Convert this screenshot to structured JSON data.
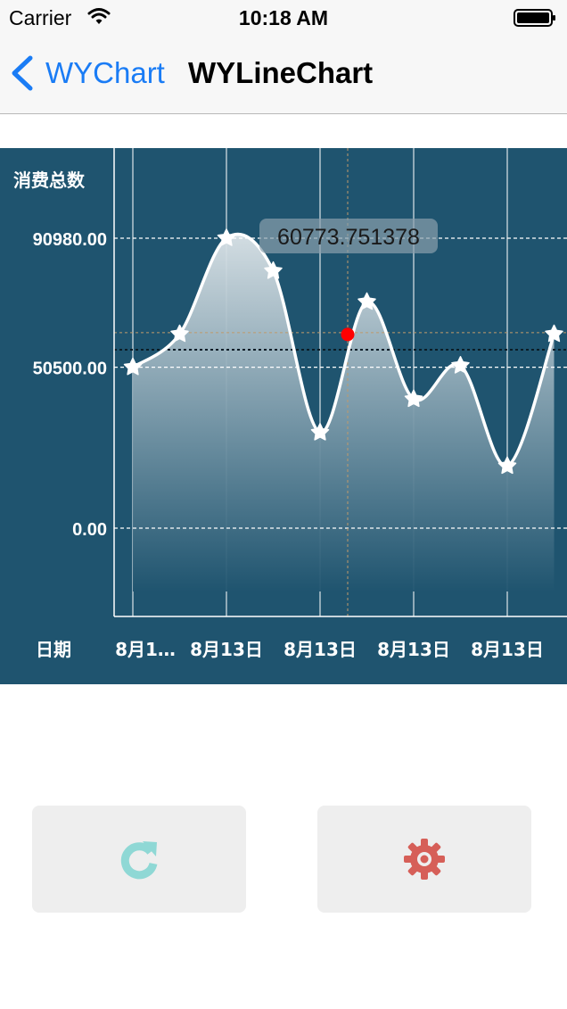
{
  "status_bar": {
    "carrier": "Carrier",
    "time": "10:18 AM"
  },
  "nav": {
    "back_label": "WYChart",
    "title": "WYLineChart"
  },
  "chart_data": {
    "type": "area",
    "title": "",
    "ylabel": "消费总数",
    "xlabel": "日期",
    "yticks": [
      "90980.00",
      "50500.00",
      "0.00"
    ],
    "ytick_values": [
      90980,
      50500,
      0
    ],
    "xtick_labels": [
      "8月1…",
      "8月13日",
      "8月13日",
      "8月13日",
      "8月13日"
    ],
    "values": [
      50500,
      60900,
      91000,
      80700,
      30000,
      71000,
      40500,
      51000,
      19500,
      60900
    ],
    "selected_value": 60773.751378,
    "selected_label": "60773.751378",
    "average_value": 56000,
    "grid": true,
    "colors": {
      "background": "#1f546f",
      "line": "#ffffff",
      "marker": "#ff0000",
      "average": "#0b1c26"
    }
  },
  "buttons": {
    "refresh": {
      "icon": "refresh-icon",
      "color": "#8fd8d5"
    },
    "settings": {
      "icon": "gear-icon",
      "color": "#d65f58"
    }
  }
}
